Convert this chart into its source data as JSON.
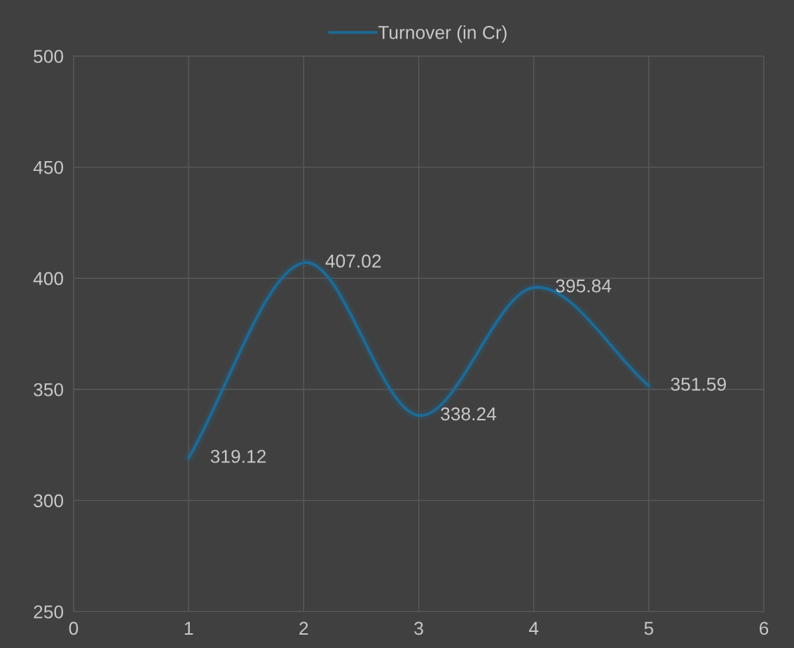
{
  "chart_data": {
    "type": "line",
    "x": [
      1,
      2,
      3,
      4,
      5
    ],
    "series": [
      {
        "name": "Turnover (in Cr)",
        "color": "#1d6a96",
        "values": [
          319.12,
          407.02,
          338.24,
          395.84,
          351.59
        ]
      }
    ],
    "xlim": [
      0,
      6
    ],
    "xticks": [
      0,
      1,
      2,
      3,
      4,
      5,
      6
    ],
    "ylim": [
      250,
      500
    ],
    "yticks": [
      250,
      300,
      350,
      400,
      450,
      500
    ],
    "grid": true,
    "legend": "top",
    "data_labels": true,
    "marker": "none",
    "line_style": "solid"
  }
}
